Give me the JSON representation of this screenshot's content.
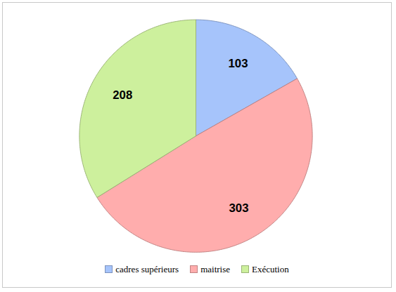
{
  "chart_data": {
    "type": "pie",
    "categories": [
      "cadres supérieurs",
      "maitrise",
      "Exécution"
    ],
    "values": [
      103,
      303,
      208
    ],
    "colors": [
      "#a6c4fb",
      "#ffadad",
      "#cdf09d"
    ],
    "data_labels": true,
    "legend": "bottom"
  }
}
